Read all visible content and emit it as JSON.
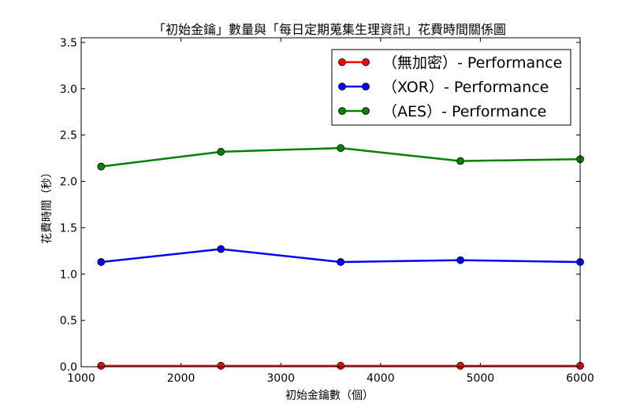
{
  "chart_data": {
    "type": "line",
    "title": "「初始金鑰」數量與「每日定期蒐集生理資訊」花費時間關係圖",
    "xlabel": "初始金鑰數（個）",
    "ylabel": "花費時間（秒）",
    "xlim": [
      1000,
      6000
    ],
    "ylim": [
      0,
      3.55
    ],
    "xticks": [
      1000,
      2000,
      3000,
      4000,
      5000,
      6000
    ],
    "xtick_labels": [
      "1000",
      "2000",
      "3000",
      "4000",
      "5000",
      "6000"
    ],
    "yticks": [
      0.0,
      0.5,
      1.0,
      1.5,
      2.0,
      2.5,
      3.0,
      3.5
    ],
    "ytick_labels": [
      "0.0",
      "0.5",
      "1.0",
      "1.5",
      "2.0",
      "2.5",
      "3.0",
      "3.5"
    ],
    "grid": false,
    "legend_position": "top-right",
    "x": [
      1200,
      2400,
      3600,
      4800,
      6000
    ],
    "series": [
      {
        "name": "（無加密）- Performance",
        "color": "#ff0000",
        "values": [
          0.01,
          0.01,
          0.01,
          0.01,
          0.01
        ]
      },
      {
        "name": "（XOR）- Performance",
        "color": "#0000ff",
        "values": [
          1.13,
          1.27,
          1.13,
          1.15,
          1.13
        ]
      },
      {
        "name": "（AES）- Performance",
        "color": "#008000",
        "values": [
          2.16,
          2.32,
          2.36,
          2.22,
          2.24
        ]
      }
    ]
  }
}
